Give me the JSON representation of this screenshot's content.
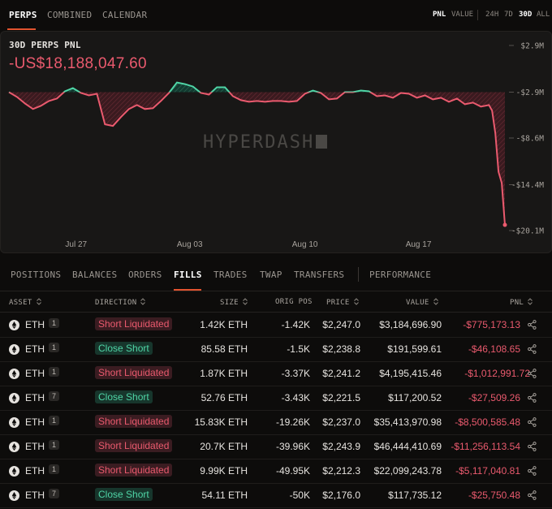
{
  "top_tabs": [
    "PERPS",
    "COMBINED",
    "CALENDAR"
  ],
  "metric_toggle": [
    "PNL",
    "VALUE"
  ],
  "range_toggle": [
    "24H",
    "7D",
    "30D",
    "ALL"
  ],
  "panel": {
    "title": "30D PERPS PNL",
    "value": "-US$18,188,047.60",
    "watermark": "HYPERDASH"
  },
  "colors": {
    "positive": "#4fd5a6",
    "negative": "#ea5a6e",
    "accent": "#e2532f"
  },
  "chart_data": {
    "type": "area",
    "y_ticks": [
      "$2.9M",
      "-$2.9M",
      "-$8.6M",
      "-$14.4M",
      "-$20.1M"
    ],
    "y_tick_values": [
      2.9,
      -2.9,
      -8.6,
      -14.4,
      -20.1
    ],
    "x_ticks": [
      "Jul 27",
      "Aug 03",
      "Aug 10",
      "Aug 17"
    ],
    "ylim": [
      -20.1,
      2.9
    ],
    "baseline": -2.9,
    "x": [
      0,
      0.5,
      1,
      1.5,
      2,
      2.5,
      3,
      3.5,
      4,
      4.5,
      5,
      5.5,
      6,
      6.5,
      7,
      7.5,
      8,
      8.5,
      9,
      9.5,
      10,
      10.5,
      11,
      11.5,
      12,
      12.5,
      13,
      13.5,
      14,
      14.5,
      15,
      15.5,
      16,
      16.5,
      17,
      17.5,
      18,
      18.5,
      19,
      19.5,
      20,
      20.5,
      21,
      21.5,
      22,
      22.5,
      23,
      23.5,
      24,
      24.5,
      25,
      25.5,
      26,
      26.5,
      27,
      27.5,
      28,
      28.5,
      29,
      29.5,
      30,
      30.2,
      30.4,
      30.6,
      30.8,
      31
    ],
    "y": [
      -2.9,
      -3.5,
      -4.3,
      -5.0,
      -4.6,
      -4.0,
      -3.7,
      -2.8,
      -2.4,
      -3.0,
      -3.3,
      -3.1,
      -6.9,
      -7.1,
      -6.0,
      -5.0,
      -4.5,
      -5.0,
      -4.9,
      -4.0,
      -3.0,
      -1.7,
      -1.9,
      -2.2,
      -3.0,
      -3.2,
      -2.3,
      -2.3,
      -3.4,
      -3.9,
      -4.1,
      -4.0,
      -4.1,
      -4.0,
      -4.0,
      -4.1,
      -4.0,
      -3.1,
      -2.7,
      -3.0,
      -3.8,
      -3.7,
      -2.9,
      -2.9,
      -2.7,
      -2.8,
      -3.4,
      -3.3,
      -3.6,
      -3.0,
      -3.1,
      -3.6,
      -3.3,
      -3.8,
      -3.6,
      -4.1,
      -3.7,
      -4.4,
      -4.2,
      -4.7,
      -4.5,
      -5.2,
      -8.0,
      -12.8,
      -14.2,
      -19.4
    ]
  },
  "bottom_tabs": [
    "POSITIONS",
    "BALANCES",
    "ORDERS",
    "FILLS",
    "TRADES",
    "TWAP",
    "TRANSFERS",
    "PERFORMANCE"
  ],
  "table": {
    "headers": [
      "ASSET",
      "DIRECTION",
      "SIZE",
      "ORIG POS",
      "PRICE",
      "VALUE",
      "PNL"
    ],
    "rows": [
      {
        "asset": "ETH",
        "lev": "1",
        "dir": "Short Liquidated",
        "kind": "liq",
        "size": "1.42K ETH",
        "orig": "-1.42K",
        "price": "$2,247.0",
        "value": "$3,184,696.90",
        "pnl": "-$775,173.13"
      },
      {
        "asset": "ETH",
        "lev": "1",
        "dir": "Close Short",
        "kind": "close",
        "size": "85.58 ETH",
        "orig": "-1.5K",
        "price": "$2,238.8",
        "value": "$191,599.61",
        "pnl": "-$46,108.65"
      },
      {
        "asset": "ETH",
        "lev": "1",
        "dir": "Short Liquidated",
        "kind": "liq",
        "size": "1.87K ETH",
        "orig": "-3.37K",
        "price": "$2,241.2",
        "value": "$4,195,415.46",
        "pnl": "-$1,012,991.72"
      },
      {
        "asset": "ETH",
        "lev": "7",
        "dir": "Close Short",
        "kind": "close",
        "size": "52.76 ETH",
        "orig": "-3.43K",
        "price": "$2,221.5",
        "value": "$117,200.52",
        "pnl": "-$27,509.26"
      },
      {
        "asset": "ETH",
        "lev": "1",
        "dir": "Short Liquidated",
        "kind": "liq",
        "size": "15.83K ETH",
        "orig": "-19.26K",
        "price": "$2,237.0",
        "value": "$35,413,970.98",
        "pnl": "-$8,500,585.48"
      },
      {
        "asset": "ETH",
        "lev": "1",
        "dir": "Short Liquidated",
        "kind": "liq",
        "size": "20.7K ETH",
        "orig": "-39.96K",
        "price": "$2,243.9",
        "value": "$46,444,410.69",
        "pnl": "-$11,256,113.54"
      },
      {
        "asset": "ETH",
        "lev": "1",
        "dir": "Short Liquidated",
        "kind": "liq",
        "size": "9.99K ETH",
        "orig": "-49.95K",
        "price": "$2,212.3",
        "value": "$22,099,243.78",
        "pnl": "-$5,117,040.81"
      },
      {
        "asset": "ETH",
        "lev": "7",
        "dir": "Close Short",
        "kind": "close",
        "size": "54.11 ETH",
        "orig": "-50K",
        "price": "$2,176.0",
        "value": "$117,735.12",
        "pnl": "-$25,750.48"
      }
    ]
  }
}
